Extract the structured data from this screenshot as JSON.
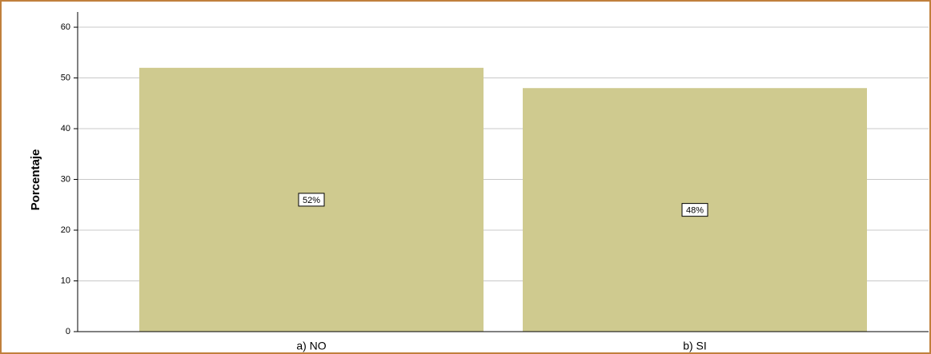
{
  "chart_data": {
    "type": "bar",
    "ylabel": "Porcentaje",
    "categories": [
      "a) NO",
      "b) SI"
    ],
    "values": [
      52,
      48
    ],
    "value_labels": [
      "52%",
      "48%"
    ],
    "color": "#cfca8f",
    "ylim": [
      0,
      63
    ],
    "yticks": [
      0,
      10,
      20,
      30,
      40,
      50,
      60
    ],
    "grid": true
  }
}
